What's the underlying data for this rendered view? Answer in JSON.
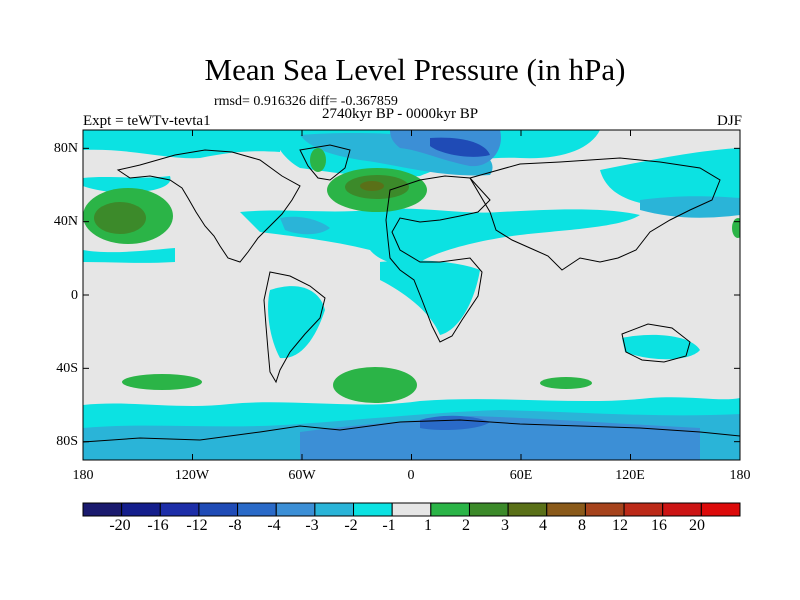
{
  "title": "Mean Sea Level Pressure (in hPa)",
  "stats": "rmsd= 0.916326 diff= -0.367859",
  "period": "2740kyr BP - 0000kyr BP",
  "experiment": "Expt = teWTv-tevta1",
  "season": "DJF",
  "map": {
    "lat_range": [
      -90,
      90
    ],
    "lon_range": [
      -180,
      180
    ],
    "lat_ticks": [
      {
        "value": 80,
        "label": "80N"
      },
      {
        "value": 40,
        "label": "40N"
      },
      {
        "value": 0,
        "label": "0"
      },
      {
        "value": -40,
        "label": "40S"
      },
      {
        "value": -80,
        "label": "80S"
      }
    ],
    "lon_ticks": [
      {
        "value": -180,
        "label": "180"
      },
      {
        "value": -120,
        "label": "120W"
      },
      {
        "value": -60,
        "label": "60W"
      },
      {
        "value": 0,
        "label": "0"
      },
      {
        "value": 60,
        "label": "60E"
      },
      {
        "value": 120,
        "label": "120E"
      },
      {
        "value": 180,
        "label": "180"
      }
    ]
  },
  "colorbar": {
    "labels": [
      "-20",
      "-16",
      "-12",
      "-8",
      "-4",
      "-3",
      "-2",
      "-1",
      "1",
      "2",
      "3",
      "4",
      "8",
      "12",
      "16",
      "20"
    ],
    "colors": [
      "#1a1a6e",
      "#141e8c",
      "#1d2ea8",
      "#1f4bb6",
      "#2a6ac8",
      "#3c8fd6",
      "#2ab4d8",
      "#0ce2e2",
      "#e6e6e6",
      "#2bb447",
      "#3c8a2a",
      "#5a7018",
      "#8a5a1a",
      "#a6431c",
      "#bc2a18",
      "#cc1414",
      "#dc0a0a"
    ]
  },
  "fills": {
    "background": "#e6e6e6",
    "neg1": "#0ce2e2",
    "neg2": "#2ab4d8",
    "neg3": "#3c8fd6",
    "neg4": "#2a6ac8",
    "neg8": "#1f4bb6",
    "pos1": "#2bb447",
    "pos2": "#3c8a2a",
    "pos3": "#5a7018"
  }
}
